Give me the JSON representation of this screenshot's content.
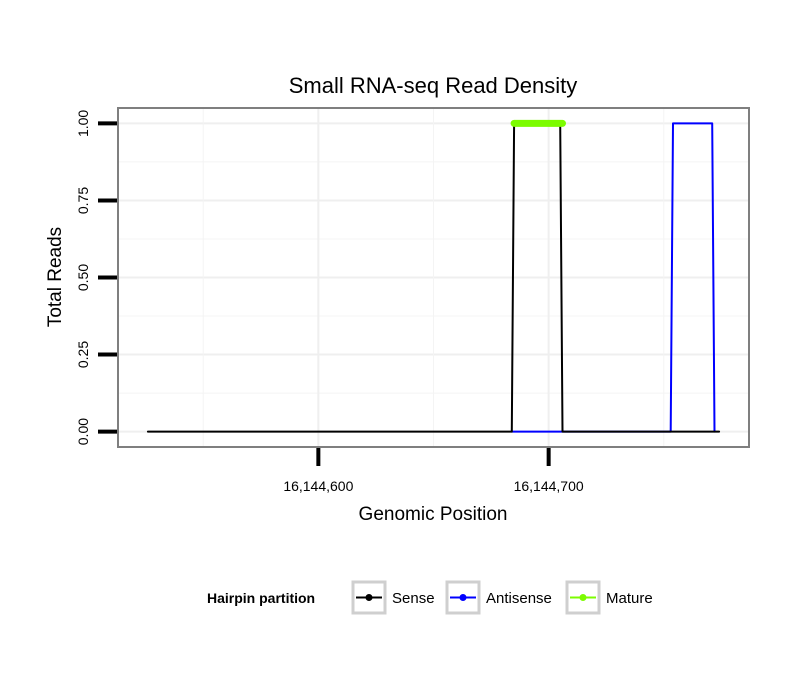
{
  "chart_data": {
    "type": "line",
    "title": "Small RNA-seq Read Density",
    "xlabel": "Genomic Position",
    "ylabel": "Total Reads",
    "xlim": [
      16144513,
      16144787
    ],
    "ylim": [
      -0.05,
      1.05
    ],
    "xticks": [
      {
        "value": 16144600,
        "label": "16,144,600"
      },
      {
        "value": 16144700,
        "label": "16,144,700"
      }
    ],
    "yticks": [
      {
        "value": 0,
        "label": "0.00"
      },
      {
        "value": 0.25,
        "label": "0.25"
      },
      {
        "value": 0.5,
        "label": "0.50"
      },
      {
        "value": 0.75,
        "label": "0.75"
      },
      {
        "value": 1.0,
        "label": "1.00"
      }
    ],
    "grid": true,
    "legend": {
      "title": "Hairpin partition",
      "position": "bottom",
      "entries": [
        "Sense",
        "Antisense",
        "Mature"
      ]
    },
    "series": [
      {
        "name": "Sense",
        "color": "#000000",
        "x": [
          16144526,
          16144684,
          16144685,
          16144705,
          16144706,
          16144774
        ],
        "values": [
          0,
          0,
          1,
          1,
          0,
          0
        ]
      },
      {
        "name": "Antisense",
        "color": "#0000FF",
        "x": [
          16144684,
          16144706,
          16144753,
          16144754,
          16144771,
          16144772
        ],
        "values": [
          0,
          0,
          0,
          1,
          1,
          0
        ]
      },
      {
        "name": "Mature",
        "color": "#7CFC00",
        "x": [
          16144685,
          16144706
        ],
        "values": [
          1,
          1
        ]
      }
    ]
  }
}
